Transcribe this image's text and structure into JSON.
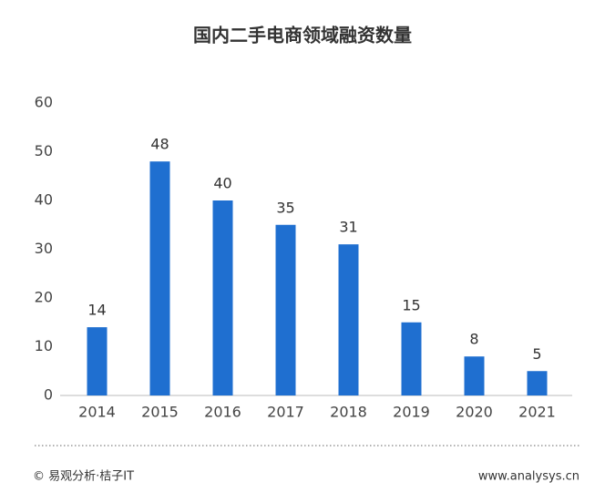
{
  "chart_data": {
    "type": "bar",
    "title": "国内二手电商领域融资数量",
    "categories": [
      "2014",
      "2015",
      "2016",
      "2017",
      "2018",
      "2019",
      "2020",
      "2021"
    ],
    "values": [
      14,
      48,
      40,
      35,
      31,
      15,
      8,
      5
    ],
    "color": "#1f6fd0",
    "ylim": [
      0,
      60
    ],
    "yticks": [
      0,
      10,
      20,
      30,
      40,
      50,
      60
    ],
    "grid": false,
    "data_labels": true
  },
  "footer": {
    "source": "© 易观分析·桔子IT",
    "website": "www.analysys.cn"
  }
}
